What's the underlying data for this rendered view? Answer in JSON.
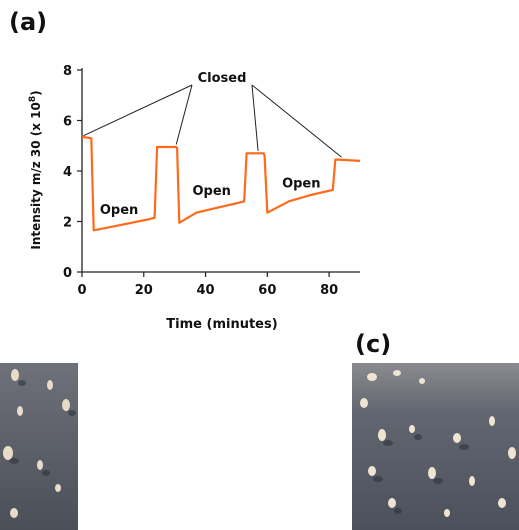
{
  "panels": {
    "a_label": "(a)",
    "c_label": "(c)"
  },
  "chart_data": {
    "type": "line",
    "xlabel": "Time (minutes)",
    "ylabel": "Intensity m/z 30 (x 10",
    "ylabel_exponent": "8",
    "ylabel_close": ")",
    "xlim": [
      0,
      90
    ],
    "ylim": [
      0,
      8
    ],
    "x_ticks": [
      0,
      20,
      40,
      60,
      80
    ],
    "y_ticks": [
      0,
      2,
      4,
      6,
      8
    ],
    "grid": false,
    "legend": "none",
    "series_color": "#ff6a1a",
    "series": [
      {
        "x": [
          0,
          3,
          3.8,
          10,
          16,
          22,
          23.5,
          24.3,
          30.5,
          30.8,
          31.5,
          37,
          44,
          51,
          52.5,
          53.3,
          58.8,
          59.1,
          60,
          67,
          74,
          81.2,
          82,
          83,
          90
        ],
        "values": [
          5.35,
          5.3,
          1.65,
          1.8,
          1.95,
          2.1,
          2.15,
          4.95,
          4.95,
          4.9,
          1.95,
          2.35,
          2.55,
          2.75,
          2.8,
          4.7,
          4.7,
          4.6,
          2.35,
          2.8,
          3.05,
          3.25,
          4.45,
          4.45,
          4.4
        ]
      }
    ],
    "annotations": {
      "closed_label": "Closed",
      "open_labels": [
        {
          "text": "Open",
          "x": 12,
          "y": 2.3
        },
        {
          "text": "Open",
          "x": 42,
          "y": 3.05
        },
        {
          "text": "Open",
          "x": 71,
          "y": 3.35
        }
      ],
      "closed_pointer_targets": [
        {
          "x": 0.5,
          "y": 5.4
        },
        {
          "x": 30.5,
          "y": 5.05
        },
        {
          "x": 57,
          "y": 4.8
        },
        {
          "x": 84,
          "y": 4.55
        }
      ]
    }
  }
}
